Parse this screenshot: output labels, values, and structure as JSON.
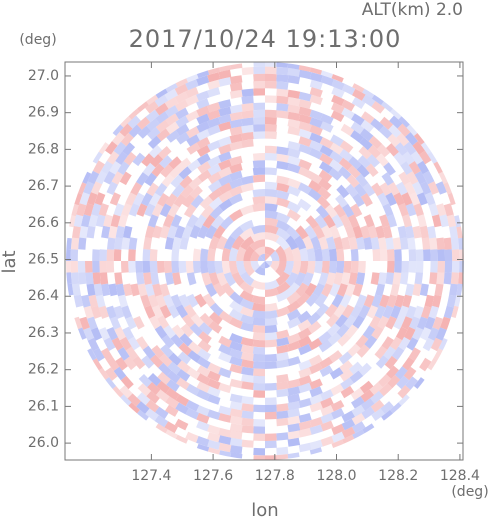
{
  "chart_data": {
    "type": "radar-ppi",
    "title": "2017/10/24 19:13:00",
    "annotation": "ALT(km) 2.0",
    "x_label": "lon",
    "y_label": "lat",
    "x_unit": "(deg)",
    "y_unit": "(deg)",
    "xlim": [
      127.12,
      128.41
    ],
    "ylim": [
      25.954,
      27.038
    ],
    "xticks": [
      127.4,
      127.6,
      127.8,
      {
        "value": 128.0,
        "label": "128.0"
      },
      128.2,
      128.4
    ],
    "yticks": [
      {
        "value": 26.0,
        "label": "26.0"
      },
      26.1,
      26.2,
      26.3,
      26.4,
      26.5,
      26.6,
      26.7,
      26.8,
      26.9,
      {
        "value": 27.0,
        "label": "27.0"
      }
    ]
  }
}
